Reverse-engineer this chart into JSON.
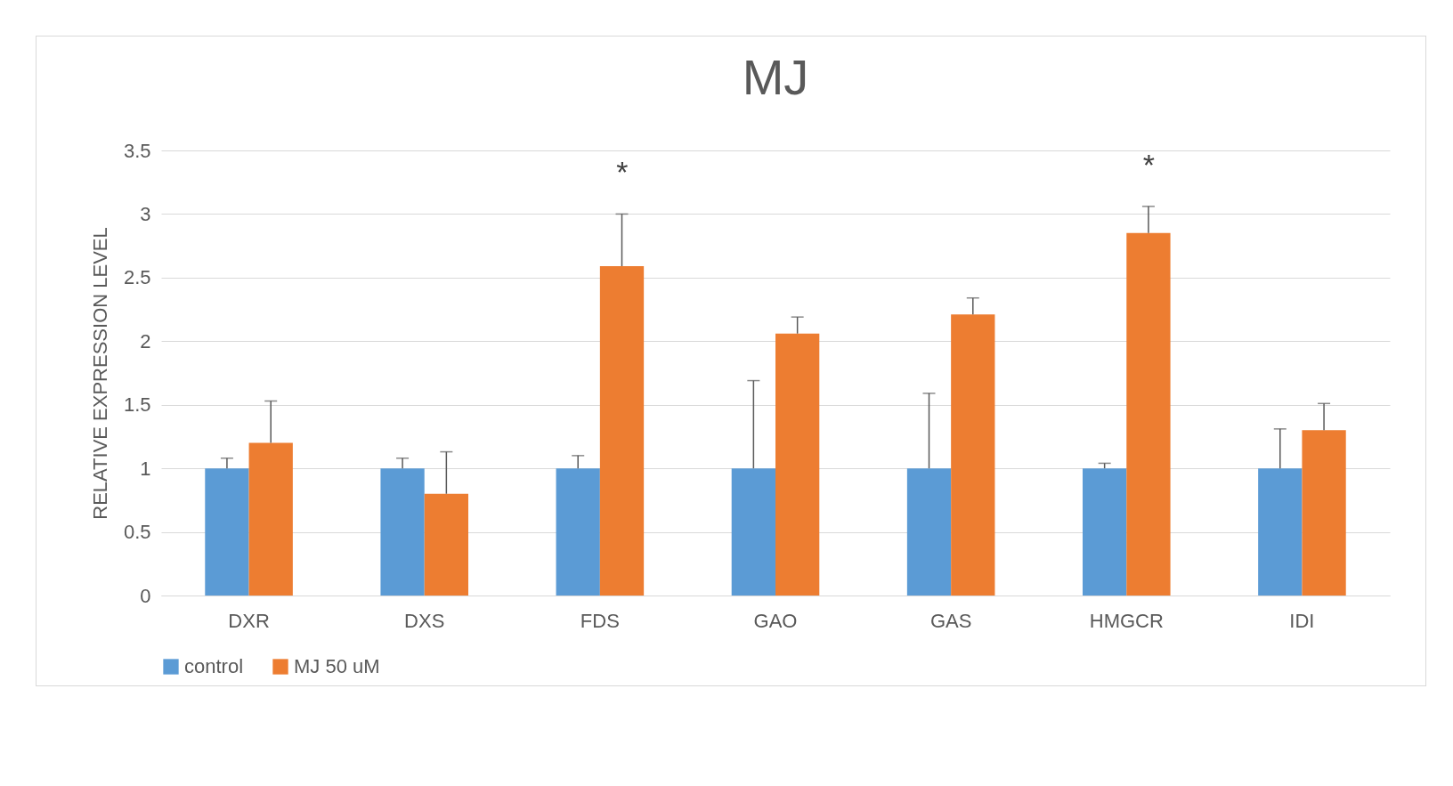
{
  "chart_data": {
    "type": "bar",
    "title": "MJ",
    "ylabel": "RELATIVE EXPRESSION LEVEL",
    "categories": [
      "DXR",
      "DXS",
      "FDS",
      "GAO",
      "GAS",
      "HMGCR",
      "IDI"
    ],
    "series": [
      {
        "name": "control",
        "color": "#5b9bd5",
        "values": [
          1,
          1,
          1,
          1,
          1,
          1,
          1
        ],
        "errors": [
          [
            1,
            1.08
          ],
          [
            1,
            1.08
          ],
          [
            1,
            1.1
          ],
          [
            1,
            1.69
          ],
          [
            1,
            1.59
          ],
          [
            1,
            1.04
          ],
          [
            1,
            1.31
          ]
        ]
      },
      {
        "name": "MJ 50 uM",
        "color": "#ed7d31",
        "values": [
          1.2,
          0.8,
          2.59,
          2.06,
          2.21,
          2.85,
          1.3
        ],
        "errors": [
          [
            1.2,
            1.53
          ],
          [
            0.8,
            1.13
          ],
          [
            2.59,
            3.0
          ],
          [
            2.06,
            2.19
          ],
          [
            2.21,
            2.34
          ],
          [
            2.85,
            3.06
          ],
          [
            1.3,
            1.51
          ]
        ]
      }
    ],
    "ylim": [
      0,
      3.5
    ],
    "yticks": [
      0,
      0.5,
      1,
      1.5,
      2,
      2.5,
      3,
      3.5
    ],
    "grid": "y",
    "legend": "bottom",
    "annotations": [
      "*",
      "*"
    ]
  }
}
